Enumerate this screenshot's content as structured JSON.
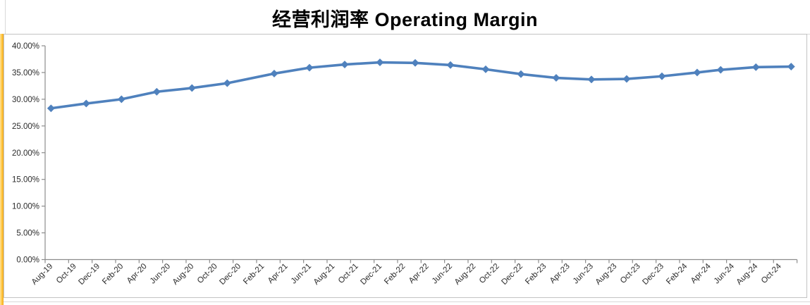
{
  "workbook": {
    "left_column_fill": "#FFC53F",
    "gridline_color": "#D9D9D9",
    "chart_border_color": "#C3C3C3",
    "chart_background": "#FFFFFF"
  },
  "chart_data": {
    "type": "line",
    "title": "经营利润率 Operating Margin",
    "legend": "none",
    "grid": "off",
    "xlabel": "",
    "ylabel": "",
    "ylim": [
      0,
      40
    ],
    "y_tick_step": 5,
    "y_tick_labels": [
      "40.00%",
      "35.00%",
      "30.00%",
      "25.00%",
      "20.00%",
      "15.00%",
      "10.00%",
      "5.00%",
      "0.00%"
    ],
    "x_tick_labels": [
      "Aug-19",
      "Oct-19",
      "Dec-19",
      "Feb-20",
      "Apr-20",
      "Jun-20",
      "Aug-20",
      "Oct-20",
      "Dec-20",
      "Feb-21",
      "Apr-21",
      "Jun-21",
      "Aug-21",
      "Oct-21",
      "Dec-21",
      "Feb-22",
      "Apr-22",
      "Jun-22",
      "Aug-22",
      "Oct-22",
      "Dec-22",
      "Feb-23",
      "Apr-23",
      "Jun-23",
      "Aug-23",
      "Oct-23",
      "Dec-23",
      "Feb-24",
      "Apr-24",
      "Jun-24",
      "Aug-24",
      "Oct-24"
    ],
    "x_label_month_interval": 2,
    "axis_months_total": 64,
    "line_color": "#4F81BD",
    "marker": "diamond",
    "marker_color": "#4F81BD",
    "axis_color": "#8C8C8C",
    "tick_label_color": "#2B2B2B",
    "series": [
      {
        "name": "Operating Margin",
        "unit": "%",
        "points": [
          {
            "date": "Aug-19",
            "month_offset": 0,
            "value": 28.3
          },
          {
            "date": "Nov-19",
            "month_offset": 3,
            "value": 29.2
          },
          {
            "date": "Feb-20",
            "month_offset": 6,
            "value": 30.0
          },
          {
            "date": "May-20",
            "month_offset": 9,
            "value": 31.4
          },
          {
            "date": "Aug-20",
            "month_offset": 12,
            "value": 32.1
          },
          {
            "date": "Nov-20",
            "month_offset": 15,
            "value": 33.0
          },
          {
            "date": "Mar-21",
            "month_offset": 19,
            "value": 34.8
          },
          {
            "date": "Jun-21",
            "month_offset": 22,
            "value": 35.9
          },
          {
            "date": "Sep-21",
            "month_offset": 25,
            "value": 36.5
          },
          {
            "date": "Dec-21",
            "month_offset": 28,
            "value": 36.9
          },
          {
            "date": "Mar-22",
            "month_offset": 31,
            "value": 36.8
          },
          {
            "date": "Jun-22",
            "month_offset": 34,
            "value": 36.4
          },
          {
            "date": "Sep-22",
            "month_offset": 37,
            "value": 35.6
          },
          {
            "date": "Dec-22",
            "month_offset": 40,
            "value": 34.7
          },
          {
            "date": "Mar-23",
            "month_offset": 43,
            "value": 34.0
          },
          {
            "date": "Jun-23",
            "month_offset": 46,
            "value": 33.7
          },
          {
            "date": "Sep-23",
            "month_offset": 49,
            "value": 33.8
          },
          {
            "date": "Dec-23",
            "month_offset": 52,
            "value": 34.3
          },
          {
            "date": "Mar-24",
            "month_offset": 55,
            "value": 35.0
          },
          {
            "date": "May-24",
            "month_offset": 57,
            "value": 35.5
          },
          {
            "date": "Aug-24",
            "month_offset": 60,
            "value": 36.0
          },
          {
            "date": "Nov-24",
            "month_offset": 63,
            "value": 36.1
          }
        ]
      }
    ]
  }
}
